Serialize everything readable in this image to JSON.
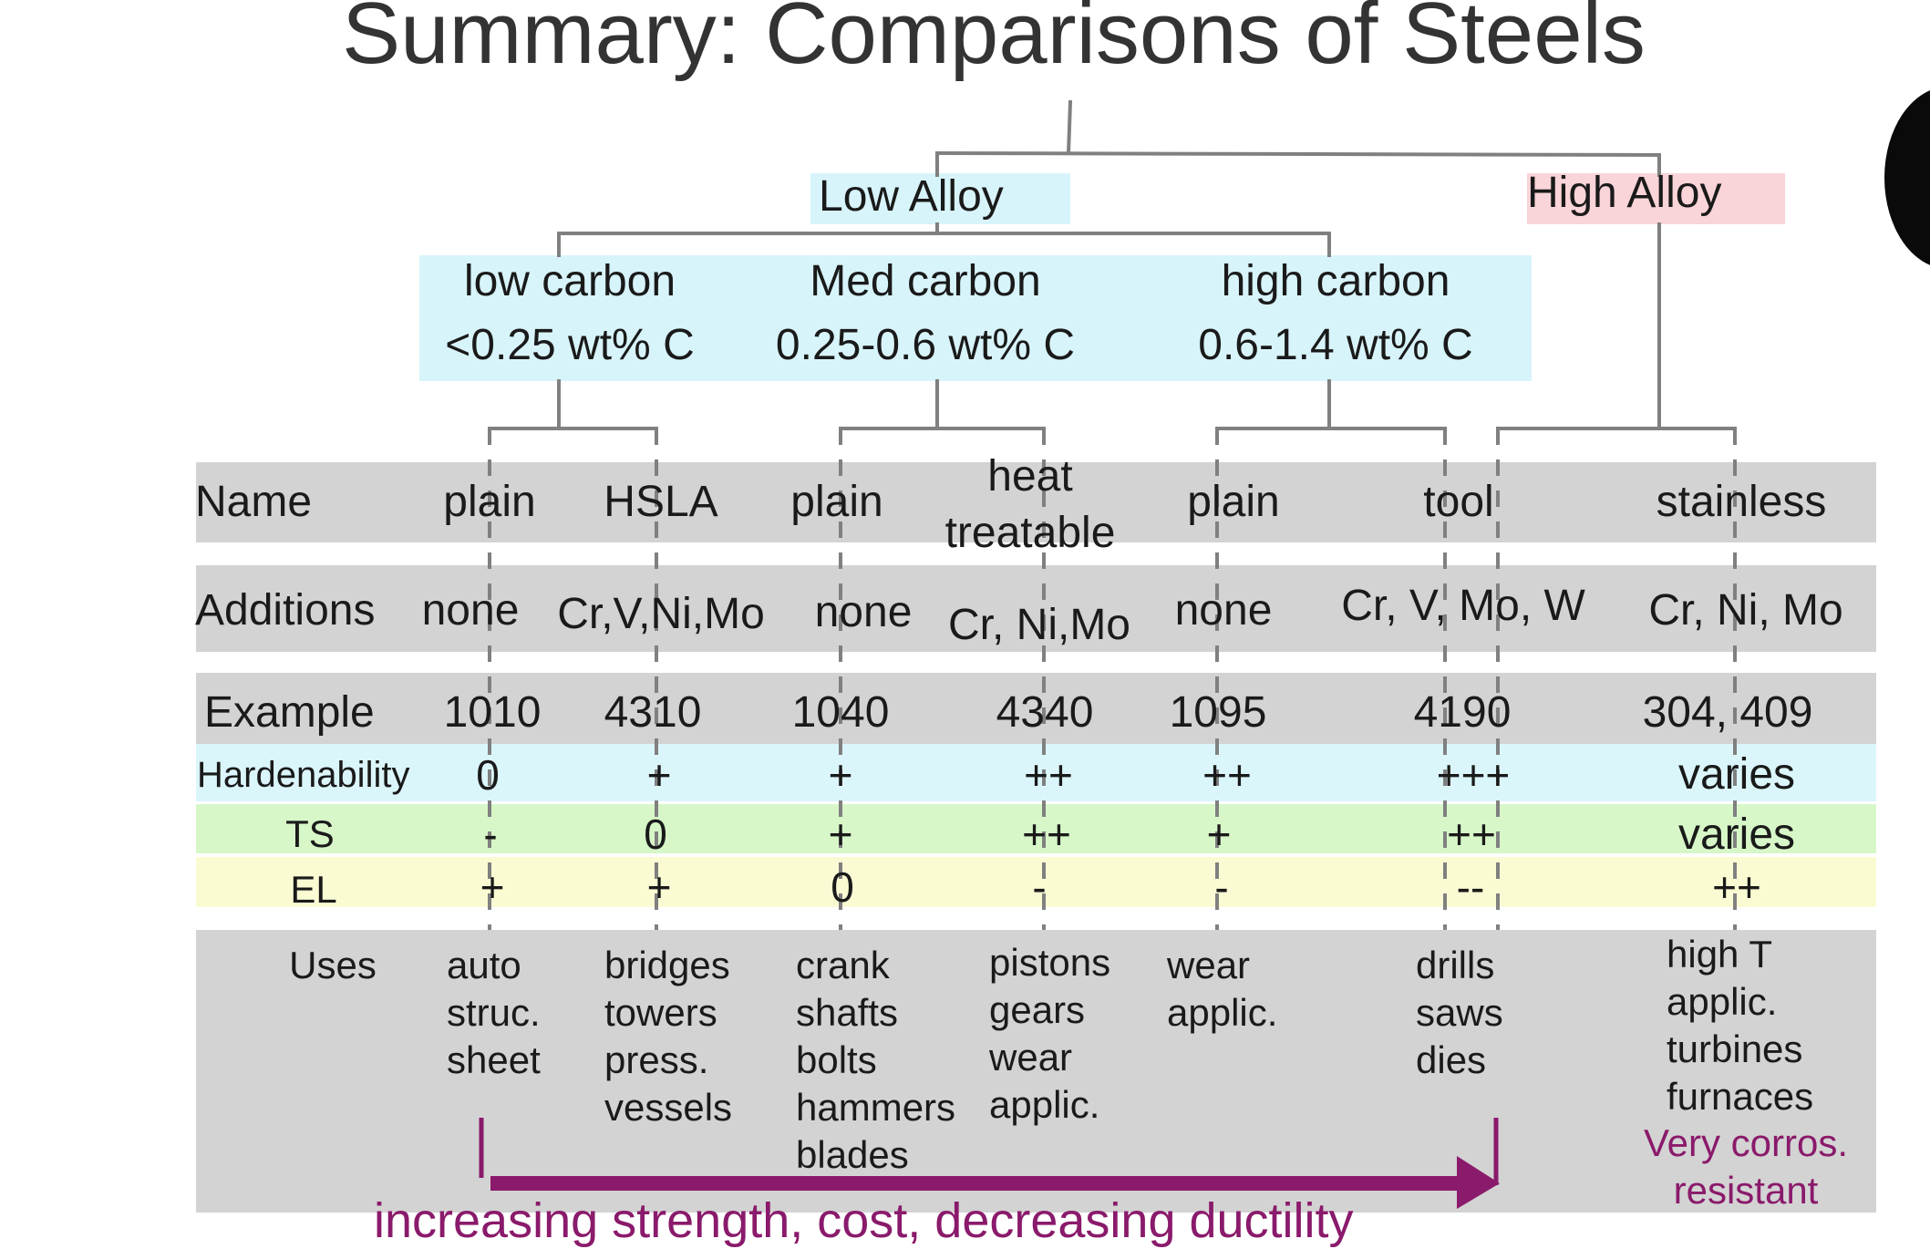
{
  "title": "Summary: Comparisons of Steels",
  "groups": {
    "low_alloy": "Low Alloy",
    "high_alloy": "High Alloy"
  },
  "carbon": [
    {
      "name": "low carbon",
      "range": "<0.25 wt% C"
    },
    {
      "name": "Med carbon",
      "range": "0.25-0.6 wt% C"
    },
    {
      "name": "high carbon",
      "range": "0.6-1.4 wt% C"
    }
  ],
  "row_labels": {
    "name": "Name",
    "additions": "Additions",
    "example": "Example",
    "hardenability": "Hardenability",
    "ts": "TS",
    "el": "EL",
    "uses": "Uses"
  },
  "columns": [
    {
      "name": "plain",
      "additions": "none",
      "example": "1010",
      "hardenability": "0",
      "ts": "-",
      "el": "+",
      "uses": "auto\nstruc.\nsheet"
    },
    {
      "name": "HSLA",
      "additions": "Cr,V,Ni,Mo",
      "example": "4310",
      "hardenability": "+",
      "ts": "0",
      "el": "+",
      "uses": "bridges\ntowers\npress.\nvessels"
    },
    {
      "name": "plain",
      "additions": "none",
      "example": "1040",
      "hardenability": "+",
      "ts": "+",
      "el": "0",
      "uses": "crank\nshafts\nbolts\nhammers\nblades"
    },
    {
      "name": "heat\ntreatable",
      "additions": "Cr, Ni,Mo",
      "example": "4340",
      "hardenability": "++",
      "ts": "++",
      "el": "-",
      "uses": "pistons\ngears\nwear\napplic."
    },
    {
      "name": "plain",
      "additions": "none",
      "example": "1095",
      "hardenability": "++",
      "ts": "+",
      "el": "-",
      "uses": "wear\napplic."
    },
    {
      "name": "tool",
      "additions": "Cr, V, Mo, W",
      "example": "4190",
      "hardenability": "+++",
      "ts": "++",
      "el": "--",
      "uses": "drills\nsaws\ndies"
    },
    {
      "name": "stainless",
      "additions": "Cr, Ni, Mo",
      "example": "304, 409",
      "hardenability": "varies",
      "ts": "varies",
      "el": "++",
      "uses": "high T\napplic.\nturbines\nfurnaces",
      "note": "Very corros.\nresistant"
    }
  ],
  "trend": "increasing strength, cost, decreasing ductility",
  "colors": {
    "gray_band": "#d3d3d3",
    "blue_band": "#dbf6fb",
    "green_band": "#d7f7c8",
    "yellow_band": "#fbfbd3",
    "pink_label": "#f9d4d8",
    "trend_purple": "#8a1a6b",
    "tree_line": "#808080"
  }
}
